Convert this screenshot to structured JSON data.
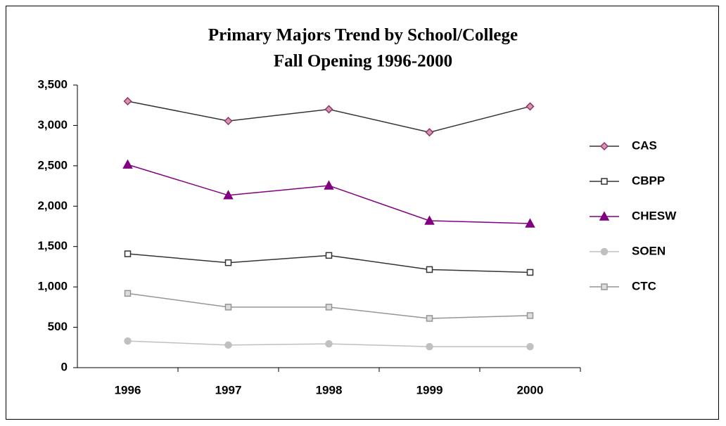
{
  "chart_data": {
    "type": "line",
    "title": "Primary Majors Trend by School/College",
    "subtitle": "Fall Opening 1996-2000",
    "categories": [
      "1996",
      "1997",
      "1998",
      "1999",
      "2000"
    ],
    "series": [
      {
        "name": "CAS",
        "color": "#333333",
        "marker": "diamond",
        "marker_fill": "#cc99b3",
        "marker_stroke": "#993366",
        "values": [
          3300,
          3055,
          3200,
          2915,
          3235
        ]
      },
      {
        "name": "CBPP",
        "color": "#333333",
        "marker": "square",
        "marker_fill": "#ffffff",
        "marker_stroke": "#333333",
        "values": [
          1410,
          1300,
          1390,
          1215,
          1180
        ]
      },
      {
        "name": "CHESW",
        "color": "#800080",
        "marker": "triangle",
        "marker_fill": "#800080",
        "marker_stroke": "#800080",
        "values": [
          2515,
          2135,
          2255,
          1820,
          1785
        ]
      },
      {
        "name": "SOEN",
        "color": "#c0c0c0",
        "marker": "circle",
        "marker_fill": "#c0c0c0",
        "marker_stroke": "#c0c0c0",
        "values": [
          330,
          280,
          295,
          260,
          260
        ]
      },
      {
        "name": "CTC",
        "color": "#969696",
        "marker": "square",
        "marker_fill": "#dddddd",
        "marker_stroke": "#969696",
        "values": [
          920,
          750,
          750,
          610,
          645
        ]
      }
    ],
    "ylim": [
      0,
      3500
    ],
    "yticks": [
      0,
      500,
      {
        "value": 1000,
        "label": "1,000"
      },
      {
        "value": 1500,
        "label": "1,500"
      },
      {
        "value": 2000,
        "label": "2,000"
      },
      {
        "value": 2500,
        "label": "2,500"
      },
      {
        "value": 3000,
        "label": "3,000"
      },
      {
        "value": 3500,
        "label": "3,500"
      }
    ],
    "grid": false,
    "legend": "right"
  }
}
